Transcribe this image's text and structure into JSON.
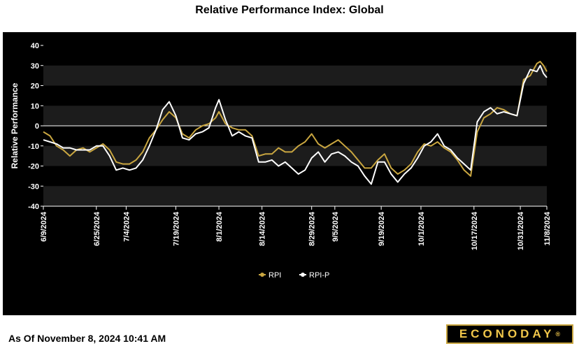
{
  "header": {
    "title": "Relative Performance Index: Global"
  },
  "footer": {
    "as_of": "As Of November 8, 2024 10:41 AM"
  },
  "logo": {
    "text": "ECONODAY",
    "reg": "®"
  },
  "colors": {
    "rpi": "#c9a640",
    "rpip": "#ffffff",
    "background": "#000000",
    "band": "#1c1c1c",
    "zero_line": "#ffffff"
  },
  "chart_data": {
    "type": "line",
    "ylabel": "Relative Performance",
    "ylim": [
      -40,
      40
    ],
    "yticks": [
      40,
      30,
      20,
      10,
      0,
      -10,
      -20,
      -30,
      -40
    ],
    "xticks": [
      {
        "label": "6/9/2024",
        "date": "2024-06-09"
      },
      {
        "label": "6/25/2024",
        "date": "2024-06-25"
      },
      {
        "label": "7/4/2024",
        "date": "2024-07-04"
      },
      {
        "label": "7/19/2024",
        "date": "2024-07-19"
      },
      {
        "label": "8/1/2024",
        "date": "2024-08-01"
      },
      {
        "label": "8/14/2024",
        "date": "2024-08-14"
      },
      {
        "label": "8/29/2024",
        "date": "2024-08-29"
      },
      {
        "label": "9/5/2024",
        "date": "2024-09-05"
      },
      {
        "label": "9/19/2024",
        "date": "2024-09-19"
      },
      {
        "label": "10/1/2024",
        "date": "2024-10-01"
      },
      {
        "label": "10/17/2024",
        "date": "2024-10-17"
      },
      {
        "label": "10/31/2024",
        "date": "2024-10-31"
      },
      {
        "label": "11/8/2024",
        "date": "2024-11-08"
      }
    ],
    "legend_position": "bottom-center",
    "series": [
      {
        "name": "RPI",
        "points": [
          [
            "2024-06-09",
            -3
          ],
          [
            "2024-06-11",
            -5
          ],
          [
            "2024-06-13",
            -10
          ],
          [
            "2024-06-15",
            -12
          ],
          [
            "2024-06-17",
            -15
          ],
          [
            "2024-06-19",
            -12
          ],
          [
            "2024-06-21",
            -11
          ],
          [
            "2024-06-23",
            -13
          ],
          [
            "2024-06-25",
            -11
          ],
          [
            "2024-06-27",
            -9
          ],
          [
            "2024-06-29",
            -12
          ],
          [
            "2024-07-01",
            -18
          ],
          [
            "2024-07-03",
            -19
          ],
          [
            "2024-07-05",
            -19
          ],
          [
            "2024-07-07",
            -17
          ],
          [
            "2024-07-09",
            -13
          ],
          [
            "2024-07-11",
            -6
          ],
          [
            "2024-07-13",
            -2
          ],
          [
            "2024-07-15",
            3
          ],
          [
            "2024-07-17",
            7
          ],
          [
            "2024-07-19",
            4
          ],
          [
            "2024-07-21",
            -4
          ],
          [
            "2024-07-23",
            -6
          ],
          [
            "2024-07-25",
            -2
          ],
          [
            "2024-07-27",
            0
          ],
          [
            "2024-07-29",
            1
          ],
          [
            "2024-07-31",
            4
          ],
          [
            "2024-08-01",
            7
          ],
          [
            "2024-08-03",
            1
          ],
          [
            "2024-08-05",
            -1
          ],
          [
            "2024-08-07",
            -2
          ],
          [
            "2024-08-09",
            -2
          ],
          [
            "2024-08-11",
            -5
          ],
          [
            "2024-08-13",
            -15
          ],
          [
            "2024-08-15",
            -14
          ],
          [
            "2024-08-17",
            -14
          ],
          [
            "2024-08-19",
            -11
          ],
          [
            "2024-08-21",
            -13
          ],
          [
            "2024-08-23",
            -13
          ],
          [
            "2024-08-25",
            -10
          ],
          [
            "2024-08-27",
            -8
          ],
          [
            "2024-08-29",
            -4
          ],
          [
            "2024-08-31",
            -9
          ],
          [
            "2024-09-02",
            -11
          ],
          [
            "2024-09-04",
            -9
          ],
          [
            "2024-09-06",
            -7
          ],
          [
            "2024-09-08",
            -10
          ],
          [
            "2024-09-10",
            -13
          ],
          [
            "2024-09-12",
            -17
          ],
          [
            "2024-09-14",
            -21
          ],
          [
            "2024-09-16",
            -21
          ],
          [
            "2024-09-18",
            -17
          ],
          [
            "2024-09-20",
            -14
          ],
          [
            "2024-09-22",
            -21
          ],
          [
            "2024-09-24",
            -24
          ],
          [
            "2024-09-26",
            -22
          ],
          [
            "2024-09-28",
            -19
          ],
          [
            "2024-09-30",
            -13
          ],
          [
            "2024-10-02",
            -9
          ],
          [
            "2024-10-04",
            -10
          ],
          [
            "2024-10-06",
            -8
          ],
          [
            "2024-10-08",
            -11
          ],
          [
            "2024-10-10",
            -13
          ],
          [
            "2024-10-12",
            -17
          ],
          [
            "2024-10-14",
            -22
          ],
          [
            "2024-10-16",
            -25
          ],
          [
            "2024-10-18",
            -3
          ],
          [
            "2024-10-20",
            4
          ],
          [
            "2024-10-22",
            6
          ],
          [
            "2024-10-24",
            9
          ],
          [
            "2024-10-26",
            8
          ],
          [
            "2024-10-28",
            6
          ],
          [
            "2024-10-30",
            5
          ],
          [
            "2024-11-01",
            23
          ],
          [
            "2024-11-03",
            25
          ],
          [
            "2024-11-05",
            31
          ],
          [
            "2024-11-06",
            32
          ],
          [
            "2024-11-07",
            30
          ],
          [
            "2024-11-08",
            27
          ]
        ]
      },
      {
        "name": "RPI-P",
        "points": [
          [
            "2024-06-09",
            -7
          ],
          [
            "2024-06-11",
            -8
          ],
          [
            "2024-06-13",
            -9
          ],
          [
            "2024-06-15",
            -11
          ],
          [
            "2024-06-17",
            -11
          ],
          [
            "2024-06-19",
            -12
          ],
          [
            "2024-06-21",
            -12
          ],
          [
            "2024-06-23",
            -12
          ],
          [
            "2024-06-25",
            -10
          ],
          [
            "2024-06-27",
            -10
          ],
          [
            "2024-06-29",
            -15
          ],
          [
            "2024-07-01",
            -22
          ],
          [
            "2024-07-03",
            -21
          ],
          [
            "2024-07-05",
            -22
          ],
          [
            "2024-07-07",
            -21
          ],
          [
            "2024-07-09",
            -17
          ],
          [
            "2024-07-11",
            -10
          ],
          [
            "2024-07-13",
            -2
          ],
          [
            "2024-07-15",
            8
          ],
          [
            "2024-07-17",
            12
          ],
          [
            "2024-07-19",
            5
          ],
          [
            "2024-07-21",
            -6
          ],
          [
            "2024-07-23",
            -7
          ],
          [
            "2024-07-25",
            -4
          ],
          [
            "2024-07-27",
            -3
          ],
          [
            "2024-07-29",
            -1
          ],
          [
            "2024-07-31",
            9
          ],
          [
            "2024-08-01",
            13
          ],
          [
            "2024-08-03",
            3
          ],
          [
            "2024-08-05",
            -5
          ],
          [
            "2024-08-07",
            -3
          ],
          [
            "2024-08-09",
            -5
          ],
          [
            "2024-08-11",
            -6
          ],
          [
            "2024-08-13",
            -18
          ],
          [
            "2024-08-15",
            -18
          ],
          [
            "2024-08-17",
            -17
          ],
          [
            "2024-08-19",
            -20
          ],
          [
            "2024-08-21",
            -18
          ],
          [
            "2024-08-23",
            -21
          ],
          [
            "2024-08-25",
            -24
          ],
          [
            "2024-08-27",
            -22
          ],
          [
            "2024-08-29",
            -16
          ],
          [
            "2024-08-31",
            -13
          ],
          [
            "2024-09-02",
            -18
          ],
          [
            "2024-09-04",
            -14
          ],
          [
            "2024-09-06",
            -13
          ],
          [
            "2024-09-08",
            -15
          ],
          [
            "2024-09-10",
            -18
          ],
          [
            "2024-09-12",
            -20
          ],
          [
            "2024-09-14",
            -25
          ],
          [
            "2024-09-16",
            -29
          ],
          [
            "2024-09-18",
            -18
          ],
          [
            "2024-09-20",
            -18
          ],
          [
            "2024-09-22",
            -24
          ],
          [
            "2024-09-24",
            -28
          ],
          [
            "2024-09-26",
            -24
          ],
          [
            "2024-09-28",
            -21
          ],
          [
            "2024-09-30",
            -16
          ],
          [
            "2024-10-02",
            -10
          ],
          [
            "2024-10-04",
            -8
          ],
          [
            "2024-10-06",
            -4
          ],
          [
            "2024-10-08",
            -10
          ],
          [
            "2024-10-10",
            -12
          ],
          [
            "2024-10-12",
            -16
          ],
          [
            "2024-10-14",
            -19
          ],
          [
            "2024-10-16",
            -22
          ],
          [
            "2024-10-18",
            2
          ],
          [
            "2024-10-20",
            7
          ],
          [
            "2024-10-22",
            9
          ],
          [
            "2024-10-24",
            6
          ],
          [
            "2024-10-26",
            7
          ],
          [
            "2024-10-28",
            6
          ],
          [
            "2024-10-30",
            5
          ],
          [
            "2024-11-01",
            21
          ],
          [
            "2024-11-03",
            28
          ],
          [
            "2024-11-05",
            27
          ],
          [
            "2024-11-06",
            30
          ],
          [
            "2024-11-07",
            26
          ],
          [
            "2024-11-08",
            24
          ]
        ]
      }
    ]
  }
}
